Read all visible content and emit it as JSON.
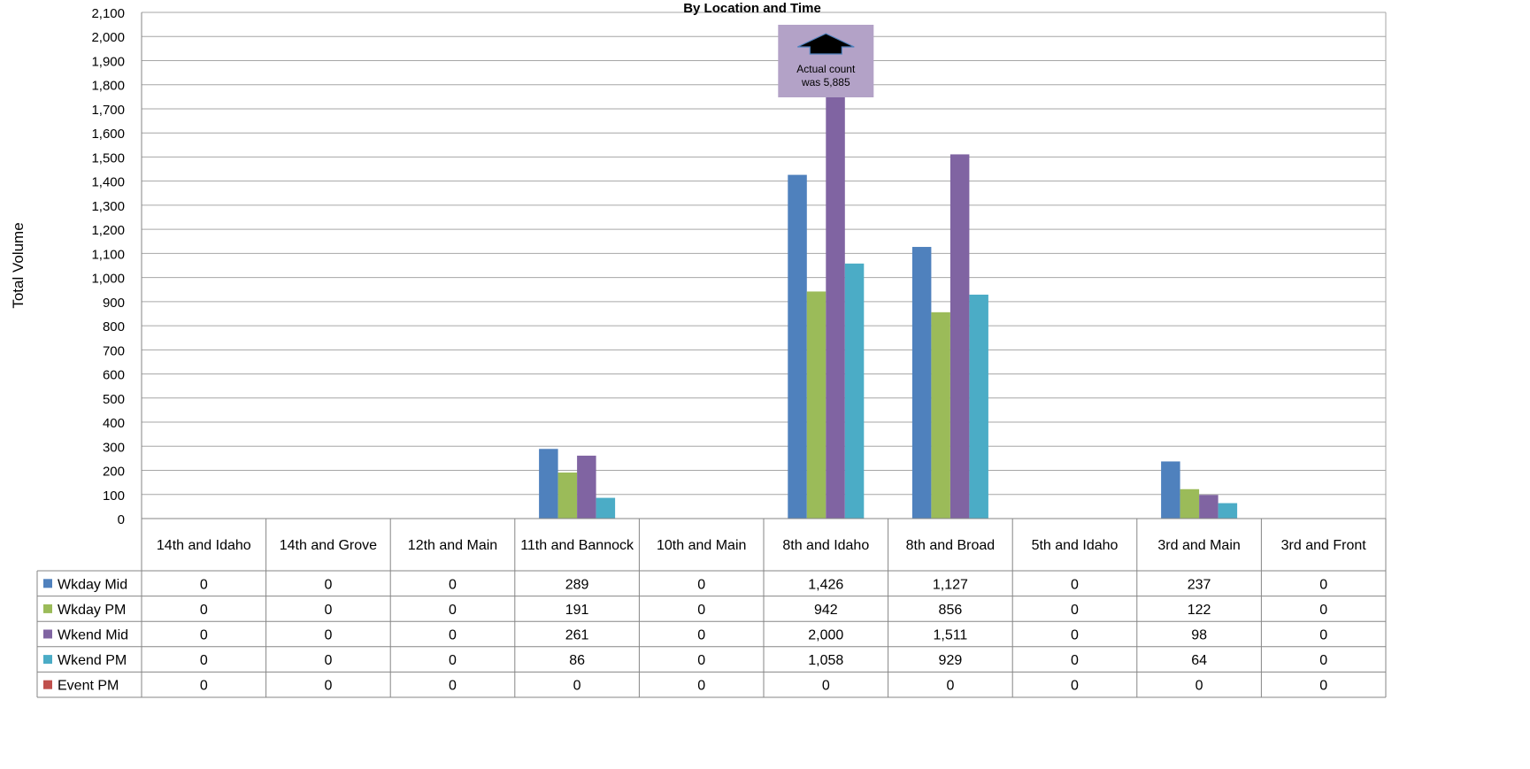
{
  "chart_data": {
    "type": "bar",
    "title": "By Location and Time",
    "ylabel": "Total Volume",
    "ylim": [
      0,
      2100
    ],
    "ytick_step": 100,
    "grid": true,
    "legend_placement": "data-table-left",
    "categories": [
      "14th and Idaho",
      "14th and Grove",
      "12th and Main",
      "11th and Bannock",
      "10th and Main",
      "8th and Idaho",
      "8th and Broad",
      "5th and Idaho",
      "3rd and Main",
      "3rd and Front"
    ],
    "series": [
      {
        "name": "Wkday Mid",
        "color": "#4F81BD",
        "values": [
          0,
          0,
          0,
          289,
          0,
          1426,
          1127,
          0,
          237,
          0
        ]
      },
      {
        "name": "Wkday PM",
        "color": "#9BBB59",
        "values": [
          0,
          0,
          0,
          191,
          0,
          942,
          856,
          0,
          122,
          0
        ]
      },
      {
        "name": "Wkend Mid",
        "color": "#8064A2",
        "values": [
          0,
          0,
          0,
          261,
          0,
          2000,
          1511,
          0,
          98,
          0
        ]
      },
      {
        "name": "Wkend PM",
        "color": "#4BACC6",
        "values": [
          0,
          0,
          0,
          86,
          0,
          1058,
          929,
          0,
          64,
          0
        ]
      },
      {
        "name": "Event PM",
        "color": "#C0504D",
        "values": [
          0,
          0,
          0,
          0,
          0,
          0,
          0,
          0,
          0,
          0
        ]
      }
    ],
    "annotation": {
      "text_lines": [
        "Actual count",
        "was 5,885"
      ],
      "category": "8th and Idaho",
      "fill": "#B3A2C7",
      "arrow_color": "#000000"
    }
  }
}
